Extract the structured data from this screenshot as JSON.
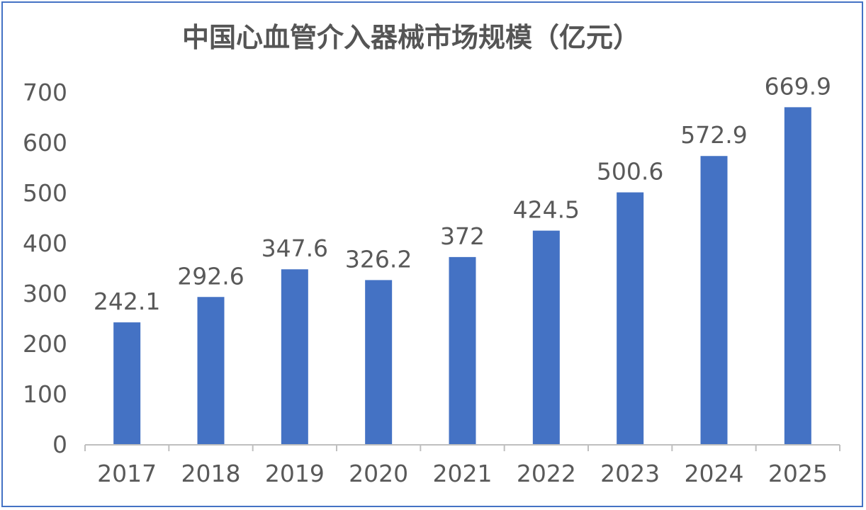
{
  "chart_data": {
    "type": "bar",
    "title": "中国心血管介入器械市场规模（亿元）",
    "categories": [
      "2017",
      "2018",
      "2019",
      "2020",
      "2021",
      "2022",
      "2023",
      "2024",
      "2025"
    ],
    "values": [
      242.1,
      292.6,
      347.6,
      326.2,
      372,
      424.5,
      500.6,
      572.9,
      669.9
    ],
    "value_labels": [
      "242.1",
      "292.6",
      "347.6",
      "326.2",
      "372",
      "424.5",
      "500.6",
      "572.9",
      "669.9"
    ],
    "y_ticks": [
      "0",
      "100",
      "200",
      "300",
      "400",
      "500",
      "600",
      "700"
    ],
    "ylim": [
      0,
      700
    ],
    "grid": false,
    "legend": "none",
    "bar_color": "#4472c4",
    "border_color": "#4472c4"
  }
}
